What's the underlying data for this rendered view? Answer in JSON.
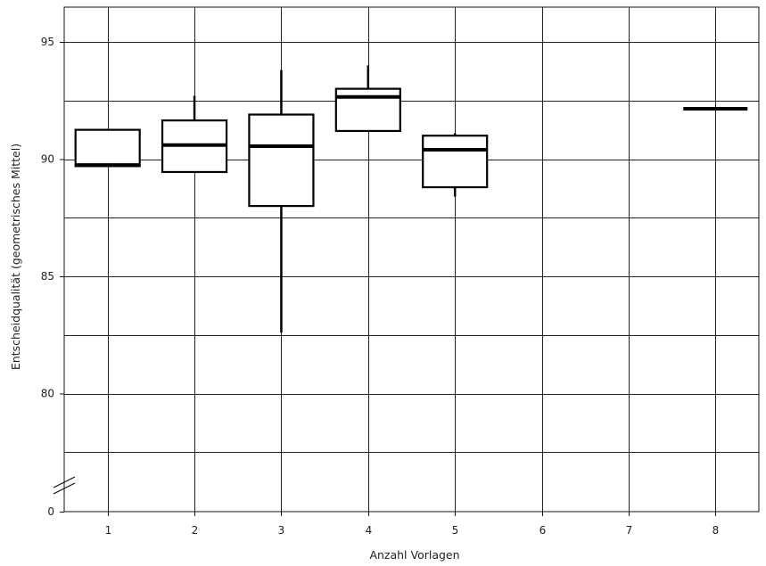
{
  "chart_data": {
    "type": "box",
    "xlabel": "Anzahl Vorlagen",
    "ylabel": "Entscheidqualität (geometrisches Mittel)",
    "categories": [
      "1",
      "2",
      "3",
      "4",
      "5",
      "6",
      "7",
      "8"
    ],
    "y_ticks": [
      95,
      90,
      85,
      80,
      0
    ],
    "y_axis_break": {
      "from": 0,
      "to": 77.5
    },
    "ylim": [
      77.5,
      97
    ],
    "grid": true,
    "boxes": [
      {
        "category": "1",
        "low": 89.7,
        "q1": 89.7,
        "median": 89.75,
        "q3": 91.25,
        "high": 91.25
      },
      {
        "category": "2",
        "low": 89.45,
        "q1": 89.45,
        "median": 90.6,
        "q3": 91.65,
        "high": 92.7
      },
      {
        "category": "3",
        "low": 82.6,
        "q1": 88.0,
        "median": 90.55,
        "q3": 91.9,
        "high": 93.8
      },
      {
        "category": "4",
        "low": 91.2,
        "q1": 91.2,
        "median": 92.65,
        "q3": 93.0,
        "high": 94.0
      },
      {
        "category": "5",
        "low": 88.4,
        "q1": 88.8,
        "median": 90.4,
        "q3": 91.0,
        "high": 91.1
      },
      {
        "category": "8",
        "low": 92.15,
        "q1": 92.15,
        "median": 92.15,
        "q3": 92.15,
        "high": 92.15
      }
    ]
  }
}
